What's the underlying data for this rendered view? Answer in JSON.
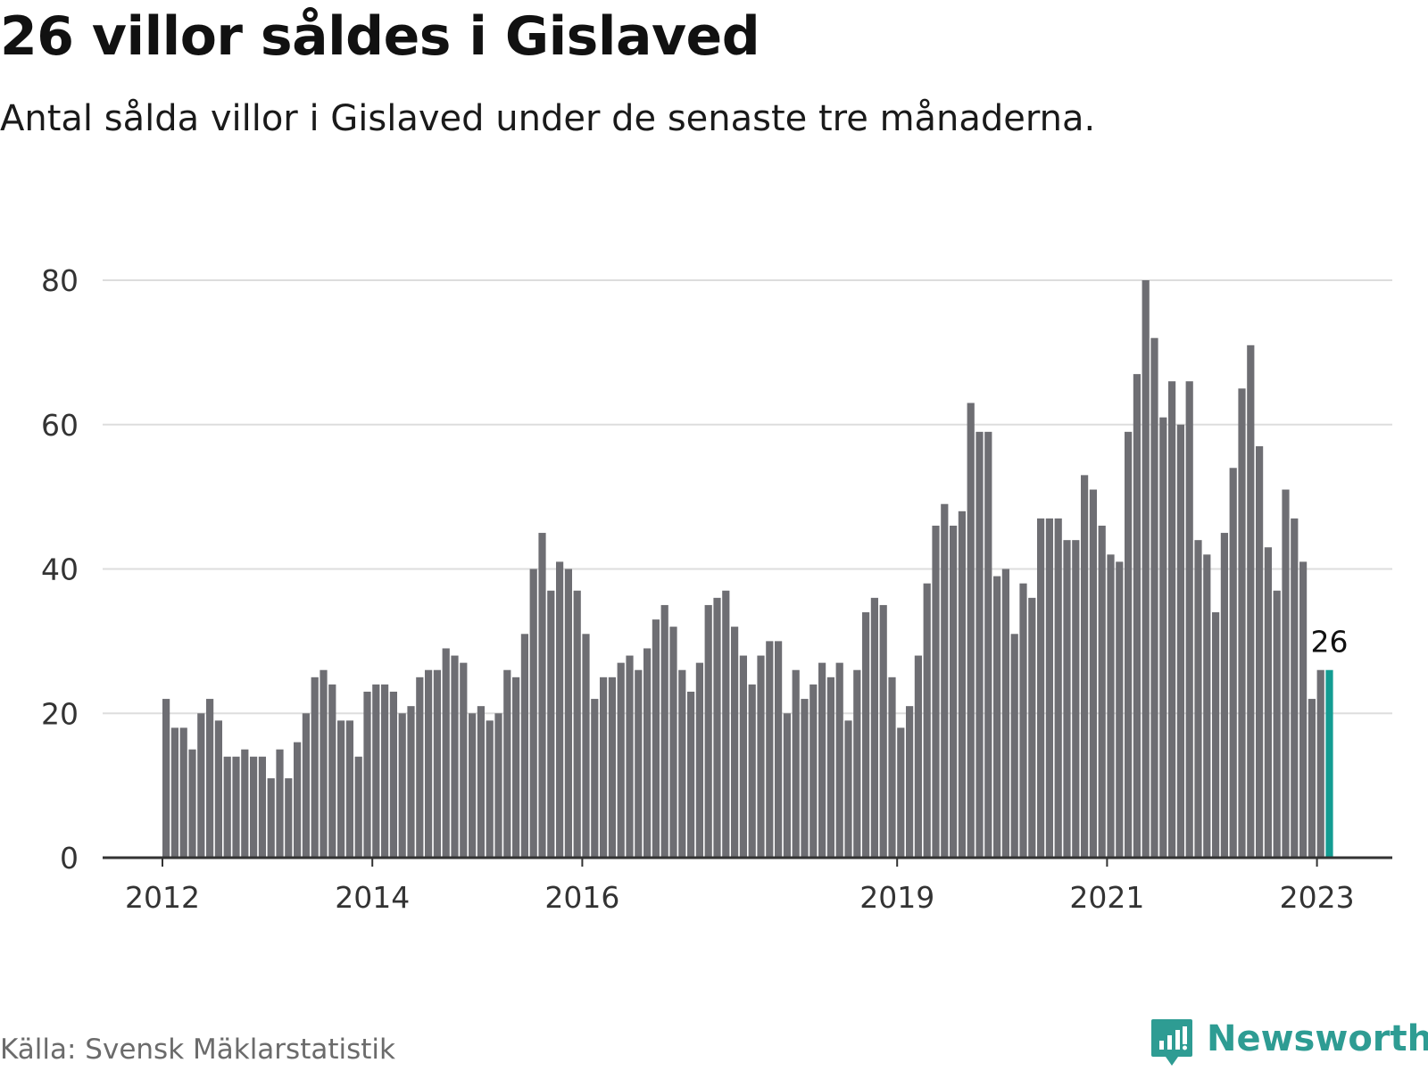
{
  "title": "26 villor såldes i Gislaved",
  "subtitle": "Antal sålda villor i Gislaved under de senaste tre månaderna.",
  "source": "Källa: Svensk Mäklarstatistik",
  "brand": {
    "name": "Newsworthy",
    "icon": "newsworthy-logo-icon"
  },
  "colors": {
    "bar": "#6e6e73",
    "highlight": "#139c92",
    "grid": "#dddddd",
    "axis": "#333333",
    "brand": "#2e9c93"
  },
  "chart_data": {
    "type": "bar",
    "title": "26 villor såldes i Gislaved",
    "xlabel": "",
    "ylabel": "",
    "ylim": [
      0,
      80
    ],
    "yticks": [
      0,
      20,
      40,
      60,
      80
    ],
    "grid": true,
    "xtick_labels": [
      {
        "label": "2012",
        "index": 0
      },
      {
        "label": "2014",
        "index": 24
      },
      {
        "label": "2016",
        "index": 48
      },
      {
        "label": "2019",
        "index": 84
      },
      {
        "label": "2021",
        "index": 108
      },
      {
        "label": "2023",
        "index": 132
      }
    ],
    "highlight": {
      "index": 133,
      "label": "26"
    },
    "values": [
      22,
      18,
      18,
      15,
      20,
      22,
      19,
      14,
      14,
      15,
      14,
      14,
      11,
      15,
      11,
      16,
      20,
      25,
      26,
      24,
      19,
      19,
      14,
      23,
      24,
      24,
      23,
      20,
      21,
      25,
      26,
      26,
      29,
      28,
      27,
      20,
      21,
      19,
      20,
      26,
      25,
      31,
      40,
      45,
      37,
      41,
      40,
      37,
      31,
      22,
      25,
      25,
      27,
      28,
      26,
      29,
      33,
      35,
      32,
      26,
      23,
      27,
      35,
      36,
      37,
      32,
      28,
      24,
      28,
      30,
      30,
      20,
      26,
      22,
      24,
      27,
      25,
      27,
      19,
      26,
      34,
      36,
      35,
      25,
      18,
      21,
      28,
      38,
      46,
      49,
      46,
      48,
      63,
      59,
      59,
      39,
      40,
      31,
      38,
      36,
      47,
      47,
      47,
      44,
      44,
      53,
      51,
      46,
      42,
      41,
      59,
      67,
      80,
      72,
      61,
      66,
      60,
      66,
      44,
      42,
      34,
      45,
      54,
      65,
      71,
      57,
      43,
      37,
      51,
      47,
      41,
      22,
      26,
      26
    ]
  }
}
